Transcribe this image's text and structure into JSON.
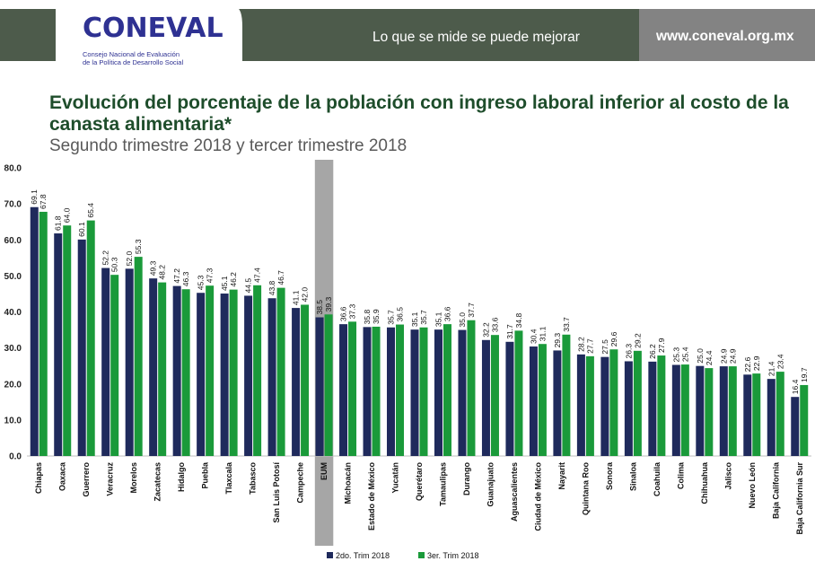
{
  "header": {
    "logo_text": "CONEVAL",
    "logo_sub_line1": "Consejo Nacional de Evaluación",
    "logo_sub_line2": "de la Política de Desarrollo Social",
    "slogan": "Lo que se mide se puede mejorar",
    "website": "www.coneval.org.mx"
  },
  "colors": {
    "banner_green": "#4d5b4b",
    "banner_grey": "#838383",
    "series1": "#1f2a5c",
    "series2": "#1a9a3a",
    "highlight": "#a6a6a6"
  },
  "chart_data": {
    "type": "bar",
    "title": "Evolución del porcentaje de la población con ingreso laboral inferior al costo de la canasta alimentaria*",
    "subtitle": "Segundo trimestre 2018 y tercer trimestre 2018",
    "ylim": [
      0,
      80
    ],
    "yticks": [
      "0.0",
      "10.0",
      "20.0",
      "30.0",
      "40.0",
      "50.0",
      "60.0",
      "70.0",
      "80.0"
    ],
    "highlight_category": "EUM",
    "legend_position": "bottom",
    "categories": [
      "Chiapas",
      "Oaxaca",
      "Guerrero",
      "Veracruz",
      "Morelos",
      "Zacatecas",
      "Hidalgo",
      "Puebla",
      "Tlaxcala",
      "Tabasco",
      "San Luis Potosí",
      "Campeche",
      "EUM",
      "Michoacán",
      "Estado de México",
      "Yucatán",
      "Querétaro",
      "Tamaulipas",
      "Durango",
      "Guanajuato",
      "Aguascalientes",
      "Ciudad de México",
      "Nayarit",
      "Quintana Roo",
      "Sonora",
      "Sinaloa",
      "Coahuila",
      "Colima",
      "Chihuahua",
      "Jalisco",
      "Nuevo León",
      "Baja California",
      "Baja California Sur"
    ],
    "series": [
      {
        "name": "2do. Trim 2018",
        "values": [
          69.1,
          61.8,
          60.1,
          52.2,
          52.0,
          49.3,
          47.2,
          45.3,
          45.1,
          44.5,
          43.8,
          41.1,
          38.5,
          36.6,
          35.8,
          35.7,
          35.1,
          35.1,
          35.0,
          32.2,
          31.7,
          30.4,
          29.3,
          28.2,
          27.5,
          26.3,
          26.2,
          25.3,
          25.0,
          24.9,
          22.6,
          21.4,
          16.4
        ]
      },
      {
        "name": "3er. Trim 2018",
        "values": [
          67.8,
          64.0,
          65.4,
          50.3,
          55.3,
          48.2,
          46.3,
          47.3,
          46.2,
          47.4,
          46.7,
          42.0,
          39.3,
          37.3,
          35.9,
          36.5,
          35.7,
          36.6,
          37.7,
          33.6,
          34.8,
          31.1,
          33.7,
          27.7,
          29.6,
          29.2,
          27.9,
          25.4,
          24.4,
          24.9,
          22.9,
          23.4,
          19.7
        ]
      }
    ]
  }
}
